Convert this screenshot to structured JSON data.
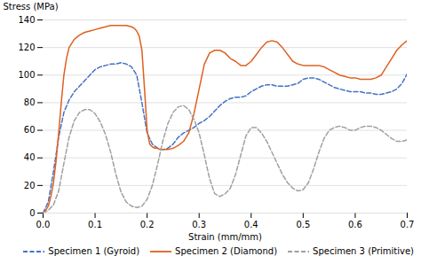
{
  "chart_data": {
    "type": "line",
    "xlabel": "Strain (mm/mm)",
    "ylabel": "Stress (MPa)",
    "xlim": [
      0,
      0.7
    ],
    "ylim": [
      0,
      140
    ],
    "xticks": [
      {
        "value": 0.0,
        "label": "0.0"
      },
      0.1,
      0.2,
      0.3,
      0.4,
      0.5,
      0.6,
      0.7
    ],
    "yticks": [
      0,
      20,
      40,
      60,
      80,
      100,
      120,
      140
    ],
    "grid": true,
    "legend": "lower right",
    "series": [
      {
        "name": "Specimen 1 (Gyroid)",
        "color": "#4472C4",
        "line_style": "dashed",
        "x": [
          0.0,
          0.01,
          0.02,
          0.03,
          0.04,
          0.05,
          0.06,
          0.07,
          0.08,
          0.09,
          0.1,
          0.11,
          0.12,
          0.13,
          0.14,
          0.15,
          0.16,
          0.17,
          0.18,
          0.19,
          0.2,
          0.21,
          0.22,
          0.23,
          0.24,
          0.25,
          0.26,
          0.27,
          0.28,
          0.29,
          0.3,
          0.31,
          0.32,
          0.33,
          0.34,
          0.35,
          0.36,
          0.37,
          0.38,
          0.39,
          0.4,
          0.41,
          0.42,
          0.43,
          0.44,
          0.45,
          0.46,
          0.47,
          0.48,
          0.49,
          0.5,
          0.51,
          0.52,
          0.53,
          0.54,
          0.55,
          0.56,
          0.57,
          0.58,
          0.59,
          0.6,
          0.61,
          0.62,
          0.63,
          0.64,
          0.65,
          0.66,
          0.67,
          0.68,
          0.69,
          0.7
        ],
        "values": [
          0,
          8,
          30,
          55,
          73,
          82,
          88,
          92,
          96,
          100,
          104,
          106,
          107,
          108,
          108,
          109,
          108,
          106,
          100,
          80,
          58,
          50,
          47,
          46,
          47,
          50,
          55,
          58,
          60,
          62,
          65,
          67,
          70,
          74,
          78,
          81,
          83,
          84,
          84,
          85,
          88,
          90,
          92,
          93,
          93,
          92,
          92,
          92,
          93,
          94,
          97,
          98,
          98,
          97,
          95,
          93,
          91,
          90,
          89,
          88,
          88,
          88,
          87,
          87,
          86,
          86,
          87,
          88,
          90,
          94,
          101
        ]
      },
      {
        "name": "Specimen 2 (Diamond)",
        "color": "#E06020",
        "line_style": "solid",
        "x": [
          0.0,
          0.005,
          0.01,
          0.015,
          0.02,
          0.025,
          0.03,
          0.035,
          0.04,
          0.045,
          0.05,
          0.06,
          0.07,
          0.08,
          0.09,
          0.1,
          0.11,
          0.12,
          0.13,
          0.14,
          0.15,
          0.16,
          0.17,
          0.175,
          0.18,
          0.185,
          0.19,
          0.195,
          0.2,
          0.205,
          0.21,
          0.215,
          0.22,
          0.225,
          0.23,
          0.235,
          0.24,
          0.25,
          0.26,
          0.27,
          0.28,
          0.29,
          0.3,
          0.31,
          0.32,
          0.33,
          0.34,
          0.35,
          0.36,
          0.37,
          0.38,
          0.39,
          0.4,
          0.41,
          0.42,
          0.43,
          0.44,
          0.45,
          0.46,
          0.47,
          0.48,
          0.49,
          0.5,
          0.505,
          0.51,
          0.52,
          0.53,
          0.54,
          0.55,
          0.56,
          0.57,
          0.58,
          0.59,
          0.6,
          0.61,
          0.62,
          0.63,
          0.64,
          0.65,
          0.66,
          0.67,
          0.68,
          0.69,
          0.7
        ],
        "values": [
          0,
          2,
          5,
          12,
          22,
          38,
          58,
          80,
          100,
          112,
          120,
          126,
          129,
          131,
          132,
          133,
          134,
          135,
          136,
          136,
          136,
          136,
          135,
          134,
          132,
          128,
          118,
          90,
          60,
          50,
          48,
          47,
          47,
          46,
          46,
          46,
          46,
          47,
          49,
          52,
          58,
          72,
          90,
          108,
          116,
          118,
          118,
          116,
          112,
          110,
          107,
          107,
          110,
          115,
          120,
          124,
          125,
          124,
          120,
          115,
          110,
          108,
          107,
          107,
          107,
          107,
          107,
          106,
          104,
          102,
          100,
          99,
          98,
          98,
          97,
          97,
          97,
          98,
          100,
          106,
          112,
          118,
          122,
          125
        ]
      },
      {
        "name": "Specimen 3 (Primitive)",
        "color": "#A0A0A0",
        "line_style": "dashed",
        "x": [
          0.0,
          0.01,
          0.02,
          0.03,
          0.04,
          0.05,
          0.06,
          0.07,
          0.08,
          0.09,
          0.1,
          0.11,
          0.12,
          0.13,
          0.14,
          0.15,
          0.16,
          0.17,
          0.18,
          0.19,
          0.2,
          0.21,
          0.22,
          0.23,
          0.24,
          0.25,
          0.26,
          0.27,
          0.28,
          0.29,
          0.3,
          0.31,
          0.32,
          0.33,
          0.34,
          0.35,
          0.36,
          0.37,
          0.38,
          0.39,
          0.4,
          0.41,
          0.42,
          0.43,
          0.44,
          0.45,
          0.46,
          0.47,
          0.48,
          0.49,
          0.5,
          0.51,
          0.52,
          0.53,
          0.54,
          0.55,
          0.56,
          0.57,
          0.58,
          0.59,
          0.6,
          0.61,
          0.62,
          0.63,
          0.64,
          0.65,
          0.66,
          0.67,
          0.68,
          0.69,
          0.7
        ],
        "values": [
          0,
          2,
          6,
          16,
          36,
          55,
          67,
          73,
          75,
          75,
          72,
          66,
          57,
          44,
          28,
          15,
          8,
          5,
          4,
          5,
          10,
          20,
          35,
          52,
          65,
          73,
          77,
          78,
          75,
          68,
          58,
          42,
          25,
          14,
          12,
          14,
          18,
          28,
          42,
          56,
          62,
          62,
          58,
          52,
          44,
          36,
          28,
          22,
          18,
          16,
          17,
          22,
          32,
          44,
          54,
          60,
          62,
          63,
          62,
          60,
          60,
          62,
          63,
          63,
          62,
          60,
          57,
          54,
          52,
          52,
          53
        ]
      }
    ]
  }
}
